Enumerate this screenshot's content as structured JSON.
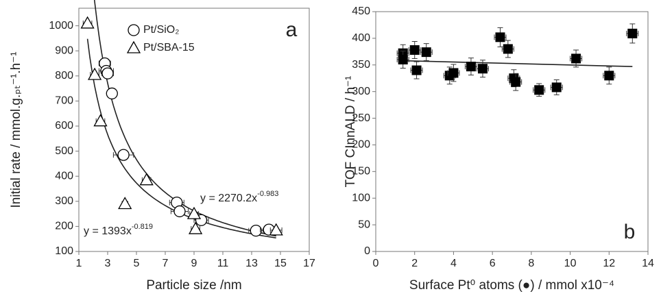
{
  "chart_data": [
    {
      "type": "scatter",
      "xlabel": "Particle size /nm",
      "ylabel": "Initial rate / mmol.g.ₚₜ⁻¹.h⁻¹",
      "annotation": "a",
      "xlim": [
        1,
        17
      ],
      "xticks": [
        1,
        3,
        5,
        7,
        9,
        11,
        13,
        15,
        17
      ],
      "ylim": [
        100,
        1070
      ],
      "yticks": [
        100,
        200,
        300,
        400,
        500,
        600,
        700,
        800,
        900,
        1000
      ],
      "legend": "upper center",
      "series": [
        {
          "name": "Pt/SiO₂",
          "marker": "circle",
          "color": "#000000",
          "x": [
            2.8,
            2.9,
            3.0,
            3.3,
            4.1,
            7.8,
            8.0,
            9.5,
            13.3,
            14.2
          ],
          "values": [
            850,
            820,
            810,
            730,
            485,
            295,
            260,
            225,
            183,
            187
          ],
          "xerr": [
            0.4,
            0.5,
            0.4,
            0.3,
            0.7,
            0.5,
            0.6,
            0.5,
            0.5,
            0.6
          ]
        },
        {
          "name": "Pt/SBA-15",
          "marker": "triangle",
          "color": "#000000",
          "x": [
            1.6,
            2.1,
            2.5,
            4.2,
            5.7,
            9.0,
            9.1,
            14.7
          ],
          "values": [
            1010,
            805,
            620,
            290,
            385,
            250,
            190,
            185
          ],
          "xerr": [
            0.3,
            0.3,
            0.3,
            0.2,
            0.3,
            0.3,
            0.3,
            0.4
          ]
        }
      ],
      "fits": [
        {
          "equation": "y = 1393x",
          "exponent": "-0.819",
          "a": 1393,
          "b": -0.819
        },
        {
          "equation": "y = 2270.2x",
          "exponent": "-0.983",
          "a": 2270.2,
          "b": -0.983
        }
      ]
    },
    {
      "type": "scatter",
      "xlabel": "Surface Pt⁰ atoms (●) / mmol x10⁻⁴",
      "ylabel": "TOF CInnALD / h⁻¹",
      "annotation": "b",
      "xlim": [
        0,
        14
      ],
      "xticks": [
        0,
        2,
        4,
        6,
        8,
        10,
        12,
        14
      ],
      "ylim": [
        0,
        450
      ],
      "yticks": [
        0,
        50,
        100,
        150,
        200,
        250,
        300,
        350,
        400,
        450
      ],
      "series": [
        {
          "marker": "square",
          "color": "#000000",
          "x": [
            1.4,
            1.4,
            2.0,
            2.1,
            2.6,
            3.8,
            4.0,
            4.9,
            5.5,
            6.4,
            6.8,
            7.1,
            7.2,
            8.4,
            9.3,
            10.3,
            12.0,
            13.2
          ],
          "values": [
            372,
            360,
            378,
            340,
            374,
            330,
            335,
            347,
            343,
            402,
            380,
            325,
            318,
            303,
            308,
            362,
            330,
            409
          ],
          "xerr": [
            0.3,
            0.3,
            0.3,
            0.3,
            0.3,
            0.3,
            0.3,
            0.3,
            0.3,
            0.3,
            0.3,
            0.3,
            0.3,
            0.3,
            0.3,
            0.3,
            0.3,
            0.3
          ],
          "yerr": [
            16,
            16,
            16,
            16,
            16,
            16,
            16,
            16,
            16,
            18,
            16,
            16,
            16,
            12,
            14,
            16,
            16,
            18
          ]
        }
      ],
      "trendline": {
        "x": [
          1.3,
          13.2
        ],
        "values": [
          358,
          347
        ]
      }
    }
  ]
}
